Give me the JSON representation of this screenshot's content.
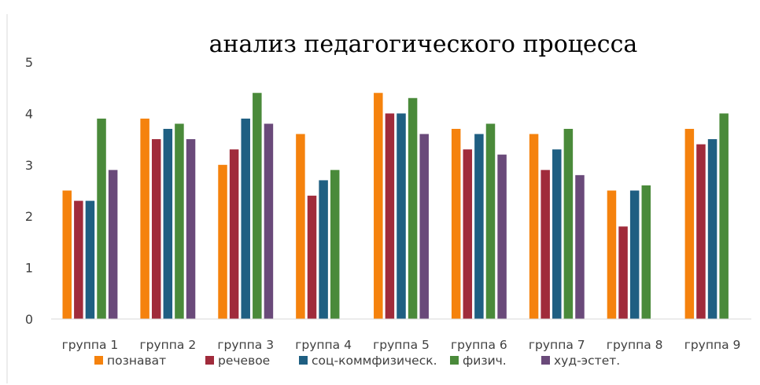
{
  "chart_data": {
    "type": "bar",
    "title": "анализ педагогического процесса",
    "xlabel": "",
    "ylabel": "",
    "ylim": [
      0,
      5
    ],
    "yticks": [
      0,
      1,
      2,
      3,
      4,
      5
    ],
    "grid": false,
    "legend_position": "bottom",
    "categories": [
      "группа 1",
      "группа 2",
      "группа 3",
      "группа 4",
      "группа 5",
      "группа 6",
      "группа 7",
      "группа 8",
      "группа 9"
    ],
    "series": [
      {
        "name": "познават",
        "color": "#f5820d",
        "values": [
          2.5,
          3.9,
          3.0,
          3.6,
          4.4,
          3.7,
          3.6,
          2.5,
          3.7
        ]
      },
      {
        "name": "речевое",
        "color": "#a02b3b",
        "values": [
          2.3,
          3.5,
          3.3,
          2.4,
          4.0,
          3.3,
          2.9,
          1.8,
          3.4
        ]
      },
      {
        "name": "соц-комм",
        "color": "#1f5f82",
        "values": [
          2.3,
          3.7,
          3.9,
          2.7,
          4.0,
          3.6,
          3.3,
          2.5,
          3.5
        ]
      },
      {
        "name": "физическ.",
        "color": "#4a8a3a",
        "values": [
          3.9,
          3.8,
          4.4,
          2.9,
          4.3,
          3.8,
          3.7,
          2.6,
          4.0
        ]
      },
      {
        "name": "физич.",
        "color": "#4a8a3a",
        "values": [
          null,
          null,
          null,
          null,
          null,
          null,
          null,
          null,
          null
        ]
      },
      {
        "name": "худ-эстет.",
        "color": "#6a4a7a",
        "values": [
          2.9,
          3.5,
          3.8,
          null,
          3.6,
          3.2,
          2.8,
          null,
          null
        ]
      }
    ],
    "legend": [
      {
        "label": "познават",
        "color": "#f5820d"
      },
      {
        "label": "речевое",
        "color": "#a02b3b"
      },
      {
        "label": "соц-коммфизическ.",
        "color": "#1f5f82"
      },
      {
        "label": "физич.",
        "color": "#4a8a3a"
      },
      {
        "label": "худ-эстет.",
        "color": "#6a4a7a"
      }
    ]
  }
}
